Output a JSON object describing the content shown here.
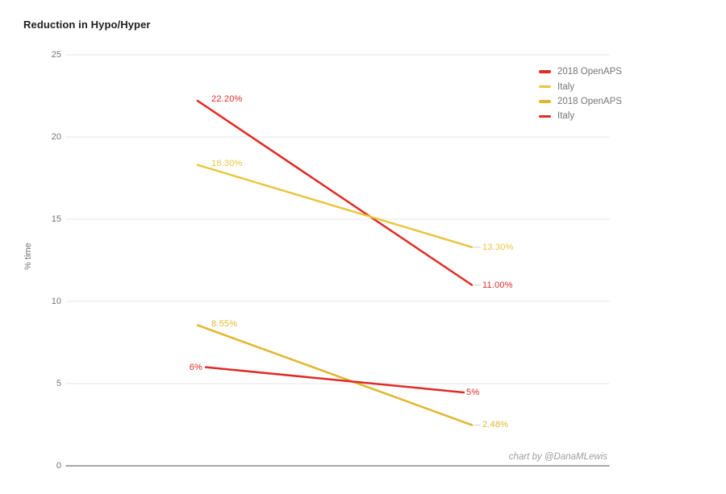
{
  "title": "Reduction in Hypo/Hyper",
  "attribution": "chart by @DanaMLewis",
  "colors": {
    "background": "#ffffff",
    "grid": "#e4e4e4",
    "axis": "#8c8c8c",
    "tick_text": "#757575",
    "legend_text": "#757575",
    "title_text": "#1d1d1d",
    "attribution_text": "#9e9e9e",
    "red": "#e02b25",
    "yellow_light": "#e9c63f",
    "yellow_gold": "#e2b62c",
    "label_leader": "#dcdcdc"
  },
  "chart_data": {
    "type": "line",
    "title": "Reduction in Hypo/Hyper",
    "xlabel": "",
    "ylabel": "% time",
    "ylim": [
      0,
      25
    ],
    "yticks": [
      25,
      20,
      15,
      10,
      5,
      0
    ],
    "x_tick_labels_visible": false,
    "grid": true,
    "legend_position": "top-right",
    "series": [
      {
        "name": "2018 OpenAPS",
        "color": "#e02b25",
        "values": [
          22.2,
          11.0
        ],
        "point_labels": [
          "22.20%",
          "11.00%"
        ],
        "start_label_side": "right"
      },
      {
        "name": "Italy",
        "color": "#e9c63f",
        "values": [
          18.3,
          13.3
        ],
        "point_labels": [
          "18.30%",
          "13.30%"
        ],
        "start_label_side": "right"
      },
      {
        "name": "2018 OpenAPS",
        "color": "#e2b62c",
        "values": [
          8.55,
          2.48
        ],
        "point_labels": [
          "8.55%",
          "2.48%"
        ],
        "start_label_side": "right"
      },
      {
        "name": "Italy",
        "color": "#e02b25",
        "values": [
          6,
          5
        ],
        "point_labels": [
          "6%",
          "5%"
        ],
        "start_label_side": "left"
      }
    ],
    "legend": [
      {
        "label": "2018 OpenAPS",
        "color": "#e02b25"
      },
      {
        "label": "Italy",
        "color": "#e9c63f"
      },
      {
        "label": "2018 OpenAPS",
        "color": "#e2b62c"
      },
      {
        "label": "Italy",
        "color": "#e02b25"
      }
    ]
  }
}
